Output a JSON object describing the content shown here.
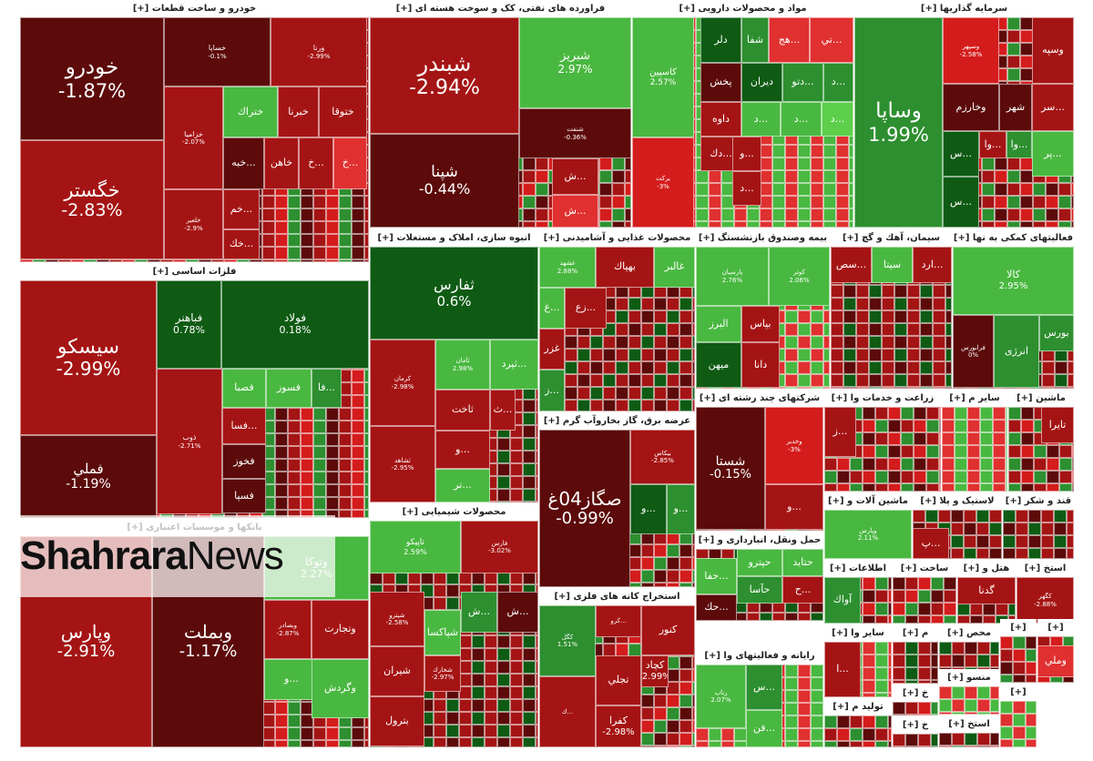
{
  "watermark": {
    "bold": "Shahrara",
    "regular": "News"
  },
  "colors": {
    "dark_red": "#5c0a0a",
    "red": "#a51414",
    "bright_red": "#d41c1c",
    "light_red": "#e03030",
    "dark_green": "#0f5b14",
    "green": "#2d8f2f",
    "light_green": "#49b840",
    "bright_green": "#5dcf4a"
  },
  "chart_data": {
    "type": "heatmap",
    "title": "",
    "sectors": [
      {
        "name": "خودرو و ساخت قطعات [+]",
        "tiles": [
          {
            "symbol": "خودرو",
            "change": "-1.87%"
          },
          {
            "symbol": "خگستر",
            "change": "-2.83%"
          },
          {
            "symbol": "خساپا",
            "change": "-0.1%"
          },
          {
            "symbol": "ورنا",
            "change": "-2.99%"
          },
          {
            "symbol": "خزامیا",
            "change": "-2.07%"
          },
          {
            "symbol": "ختراك",
            "change": ""
          },
          {
            "symbol": "خبرنا",
            "change": ""
          },
          {
            "symbol": "ختوقا",
            "change": ""
          },
          {
            "symbol": "...خبه",
            "change": ""
          },
          {
            "symbol": "خاهن",
            "change": ""
          },
          {
            "symbol": "...خ",
            "change": ""
          },
          {
            "symbol": "...خ",
            "change": ""
          },
          {
            "symbol": "خلعیر",
            "change": "-2.9%"
          },
          {
            "symbol": "...خم",
            "change": ""
          },
          {
            "symbol": "...خك",
            "change": ""
          }
        ]
      },
      {
        "name": "فراورده های نفتی، کک و سوخت هسته ای [+]",
        "tiles": [
          {
            "symbol": "شبندر",
            "change": "-2.94%"
          },
          {
            "symbol": "شپنا",
            "change": "-0.44%"
          },
          {
            "symbol": "شبریز",
            "change": "2.97%"
          },
          {
            "symbol": "شنفت",
            "change": "-0.36%"
          },
          {
            "symbol": "...ش",
            "change": ""
          },
          {
            "symbol": "...ش",
            "change": ""
          }
        ]
      },
      {
        "name": "مواد و محصولات دارویی [+]",
        "tiles": [
          {
            "symbol": "کاسپین",
            "change": "2.57%"
          },
          {
            "symbol": "برکت",
            "change": "-3%"
          },
          {
            "symbol": "دلر",
            "change": ""
          },
          {
            "symbol": "شفا",
            "change": ""
          },
          {
            "symbol": "...هج",
            "change": ""
          },
          {
            "symbol": "...تي",
            "change": ""
          },
          {
            "symbol": "پخش",
            "change": ""
          },
          {
            "symbol": "ديران",
            "change": ""
          },
          {
            "symbol": "...دتو",
            "change": ""
          },
          {
            "symbol": "...د",
            "change": ""
          },
          {
            "symbol": "داوه",
            "change": ""
          },
          {
            "symbol": "...د",
            "change": ""
          },
          {
            "symbol": "...د",
            "change": ""
          },
          {
            "symbol": "...د",
            "change": ""
          },
          {
            "symbol": "...دك",
            "change": ""
          },
          {
            "symbol": "...و",
            "change": ""
          },
          {
            "symbol": "...د",
            "change": ""
          }
        ]
      },
      {
        "name": "سرمایه گذاریها [+]",
        "tiles": [
          {
            "symbol": "وساپا",
            "change": "1.99%"
          },
          {
            "symbol": "وسپهر",
            "change": "-2.58%"
          },
          {
            "symbol": "وسپه",
            "change": ""
          },
          {
            "symbol": "وخارزم",
            "change": ""
          },
          {
            "symbol": "شهر",
            "change": ""
          },
          {
            "symbol": "...سر",
            "change": ""
          },
          {
            "symbol": "...س",
            "change": ""
          },
          {
            "symbol": "...وا",
            "change": ""
          },
          {
            "symbol": "...وا",
            "change": ""
          },
          {
            "symbol": "...پر",
            "change": ""
          },
          {
            "symbol": "...س",
            "change": ""
          }
        ]
      },
      {
        "name": "فلزات اساسی [+]",
        "tiles": [
          {
            "symbol": "سیسکو",
            "change": "-2.99%"
          },
          {
            "symbol": "فملي",
            "change": "-1.19%"
          },
          {
            "symbol": "فباهنر",
            "change": "0.78%"
          },
          {
            "symbol": "فولاد",
            "change": "0.18%"
          },
          {
            "symbol": "ذوب",
            "change": "-2.71%"
          },
          {
            "symbol": "فصبا",
            "change": ""
          },
          {
            "symbol": "فسوز",
            "change": ""
          },
          {
            "symbol": "...فا",
            "change": ""
          },
          {
            "symbol": "...فسا",
            "change": ""
          },
          {
            "symbol": "فخوز",
            "change": ""
          },
          {
            "symbol": "فسپا",
            "change": ""
          }
        ]
      },
      {
        "name": "انبوه سازی، املاک و مستغلات [+]",
        "tiles": [
          {
            "symbol": "ثفارس",
            "change": "0.6%"
          },
          {
            "symbol": "کرمان",
            "change": "-2.98%"
          },
          {
            "symbol": "ثامان",
            "change": "2.98%"
          },
          {
            "symbol": "...ثپرد",
            "change": ""
          },
          {
            "symbol": "ثاخت",
            "change": ""
          },
          {
            "symbol": "...ث",
            "change": ""
          },
          {
            "symbol": "ثشاهد",
            "change": "-2.95%"
          },
          {
            "symbol": "...و",
            "change": ""
          },
          {
            "symbol": "...تر",
            "change": ""
          }
        ]
      },
      {
        "name": "محصولات غذایی و آشامیدنی [+]",
        "tiles": [
          {
            "symbol": "غشهد",
            "change": "2.88%"
          },
          {
            "symbol": "بهپاك",
            "change": ""
          },
          {
            "symbol": "غالبر",
            "change": ""
          },
          {
            "symbol": "...غ",
            "change": ""
          },
          {
            "symbol": "...زع",
            "change": ""
          },
          {
            "symbol": "غزر",
            "change": ""
          },
          {
            "symbol": "...ز",
            "change": ""
          }
        ]
      },
      {
        "name": "بیمه وصندوق بازنشستگ [+]",
        "tiles": [
          {
            "symbol": "پارسیان",
            "change": "2.76%"
          },
          {
            "symbol": "کوثر",
            "change": "2.06%"
          },
          {
            "symbol": "البرز",
            "change": ""
          },
          {
            "symbol": "بپاس",
            "change": ""
          },
          {
            "symbol": "ميهن",
            "change": ""
          },
          {
            "symbol": "دانا",
            "change": ""
          }
        ]
      },
      {
        "name": "سیمان، آهك و گچ [+]",
        "tiles": [
          {
            "symbol": "...سص",
            "change": ""
          },
          {
            "symbol": "سیتا",
            "change": ""
          },
          {
            "symbol": "...ارد",
            "change": ""
          }
        ]
      },
      {
        "name": "فعالیتهای کمکی به نها [+]",
        "tiles": [
          {
            "symbol": "کالا",
            "change": "2.95%"
          },
          {
            "symbol": "بورس",
            "change": ""
          },
          {
            "symbol": "انرژی",
            "change": ""
          },
          {
            "symbol": "فرابورس",
            "change": "0%"
          }
        ]
      },
      {
        "name": "شرکتهای چند رشته ای [+]",
        "tiles": [
          {
            "symbol": "شستا",
            "change": "-0.15%"
          },
          {
            "symbol": "وخدیر",
            "change": "-3%"
          },
          {
            "symbol": "...و",
            "change": ""
          }
        ]
      },
      {
        "name": "زراعت و خدمات وا [+]",
        "tiles": [
          {
            "symbol": "...ز",
            "change": ""
          }
        ]
      },
      {
        "name": "سایر م [+]",
        "tiles": []
      },
      {
        "name": "ماشین [+]",
        "tiles": [
          {
            "symbol": "تایرا",
            "change": ""
          }
        ]
      },
      {
        "name": "عرضه برق، گاز بخاروآب گرم [+]",
        "tiles": [
          {
            "symbol": "صگاز04غ",
            "change": "-0.99%"
          },
          {
            "symbol": "بیکاس",
            "change": "-2.85%"
          },
          {
            "symbol": "...و",
            "change": ""
          },
          {
            "symbol": "...و",
            "change": ""
          }
        ]
      },
      {
        "name": "محصولات شیمیایی [+]",
        "tiles": [
          {
            "symbol": "تاپیکو",
            "change": "2.59%"
          },
          {
            "symbol": "فارس",
            "change": "-3.02%"
          },
          {
            "symbol": "شپترو",
            "change": "-2.58%"
          },
          {
            "symbol": "...ش",
            "change": ""
          },
          {
            "symbol": "...ش",
            "change": ""
          },
          {
            "symbol": "شپاکسا",
            "change": ""
          },
          {
            "symbol": "شیران",
            "change": ""
          },
          {
            "symbol": "شخارك",
            "change": "-2.97%"
          },
          {
            "symbol": "بترول",
            "change": ""
          }
        ]
      },
      {
        "name": "حمل ونقل، انبارداری و [+]",
        "tiles": [
          {
            "symbol": "حتاید",
            "change": ""
          },
          {
            "symbol": "حپترو",
            "change": ""
          },
          {
            "symbol": "...حفا",
            "change": ""
          },
          {
            "symbol": "حآسا",
            "change": ""
          },
          {
            "symbol": "...ح",
            "change": ""
          },
          {
            "symbol": "...حك",
            "change": ""
          }
        ]
      },
      {
        "name": "ماشین آلات و [+]",
        "tiles": [
          {
            "symbol": "وپارس",
            "change": "2.11%"
          }
        ]
      },
      {
        "name": "لاستیک و پلا [+]",
        "tiles": [
          {
            "symbol": "...پ",
            "change": ""
          }
        ]
      },
      {
        "name": "قند و شکر [+]",
        "tiles": []
      },
      {
        "name": "بانکها و موسسات اعتباری [+]",
        "tiles": [
          {
            "symbol": "وپارس",
            "change": "-2.91%"
          },
          {
            "symbol": "وبملت",
            "change": "-1.17%"
          },
          {
            "symbol": "وتوكا",
            "change": "2.27%"
          },
          {
            "symbol": "وتجارت",
            "change": ""
          },
          {
            "symbol": "وبصادر",
            "change": "-2.87%"
          },
          {
            "symbol": "...و",
            "change": ""
          },
          {
            "symbol": "وگردش",
            "change": ""
          }
        ]
      },
      {
        "name": "استخراج کانه های فلزی [+]",
        "tiles": [
          {
            "symbol": "کگل",
            "change": "1.51%"
          },
          {
            "symbol": "...کرو",
            "change": ""
          },
          {
            "symbol": "کنور",
            "change": ""
          },
          {
            "symbol": "تجلي",
            "change": ""
          },
          {
            "symbol": "کچاد",
            "change": "-2.99%"
          },
          {
            "symbol": "...ك",
            "change": ""
          },
          {
            "symbol": "کفرا",
            "change": "-2.98%"
          }
        ]
      },
      {
        "name": "رایانه و فعالیتهای وا [+]",
        "tiles": [
          {
            "symbol": "رتاپ",
            "change": "2.07%"
          },
          {
            "symbol": "...س",
            "change": ""
          },
          {
            "symbol": "...فن",
            "change": ""
          }
        ]
      },
      {
        "name": "اطلاعات [+]",
        "tiles": [
          {
            "symbol": "آواك",
            "change": ""
          }
        ]
      },
      {
        "name": "ساخت [+]",
        "tiles": []
      },
      {
        "name": "هتل و [+]",
        "tiles": [
          {
            "symbol": "گدنا",
            "change": ""
          }
        ]
      },
      {
        "name": "استخ [+]",
        "tiles": [
          {
            "symbol": "کگهر",
            "change": "-2.88%"
          }
        ]
      },
      {
        "name": "سایر وا [+]",
        "tiles": [
          {
            "symbol": "...ا",
            "change": ""
          }
        ]
      },
      {
        "name": "م [+]",
        "tiles": []
      },
      {
        "name": "محص [+]",
        "tiles": []
      },
      {
        "name": "[+]",
        "tiles": []
      },
      {
        "name": "[+]",
        "tiles": [
          {
            "symbol": "وملي",
            "change": ""
          }
        ]
      },
      {
        "name": "منسو [+]",
        "tiles": []
      },
      {
        "name": "تولید م [+]",
        "tiles": []
      },
      {
        "name": "خ [+]",
        "tiles": []
      },
      {
        "name": "استخ [+]",
        "tiles": []
      },
      {
        "name": "خ [+]",
        "tiles": [
          {
            "symbol": "رهنا",
            "change": ""
          }
        ]
      },
      {
        "name": "[+]",
        "tiles": []
      }
    ]
  }
}
